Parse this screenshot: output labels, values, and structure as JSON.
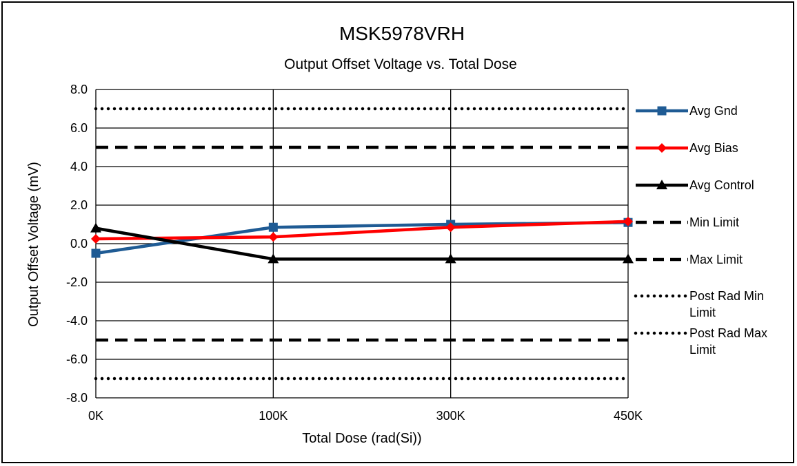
{
  "chart_data": {
    "type": "line",
    "title": "MSK5978VRH",
    "subtitle": "Output Offset Voltage vs. Total Dose",
    "xlabel": "Total Dose (rad(Si))",
    "ylabel": "Output Offset Voltage (mV)",
    "categories": [
      "0K",
      "100K",
      "300K",
      "450K"
    ],
    "ylim": [
      -8.0,
      8.0
    ],
    "ytick_values": [
      8.0,
      6.0,
      4.0,
      2.0,
      0.0,
      -2.0,
      -4.0,
      -6.0,
      -8.0
    ],
    "yticks": [
      "8.0",
      "6.0",
      "4.0",
      "2.0",
      "0.0",
      "-2.0",
      "-4.0",
      "-6.0",
      "-8.0"
    ],
    "grid": true,
    "legend_position": "right",
    "series": [
      {
        "name": "Avg Gnd",
        "values": [
          -0.5,
          0.85,
          1.0,
          1.1
        ],
        "color": "#1f5b94",
        "marker": "square",
        "style": "solid"
      },
      {
        "name": "Avg Bias",
        "values": [
          0.25,
          0.35,
          0.85,
          1.15
        ],
        "color": "#ff0000",
        "marker": "diamond",
        "style": "solid"
      },
      {
        "name": "Avg Control",
        "values": [
          0.8,
          -0.8,
          -0.8,
          -0.8
        ],
        "color": "#000000",
        "marker": "triangle",
        "style": "solid"
      },
      {
        "name": "Min Limit",
        "values": [
          -5.0,
          -5.0,
          -5.0,
          -5.0
        ],
        "color": "#000000",
        "marker": "none",
        "style": "dashed"
      },
      {
        "name": "Max Limit",
        "values": [
          5.0,
          5.0,
          5.0,
          5.0
        ],
        "color": "#000000",
        "marker": "none",
        "style": "dashed"
      },
      {
        "name": "Post Rad Min Limit",
        "values": [
          -7.0,
          -7.0,
          -7.0,
          -7.0
        ],
        "color": "#000000",
        "marker": "none",
        "style": "dotted"
      },
      {
        "name": "Post Rad Max Limit",
        "values": [
          7.0,
          7.0,
          7.0,
          7.0
        ],
        "color": "#000000",
        "marker": "none",
        "style": "dotted"
      }
    ]
  }
}
